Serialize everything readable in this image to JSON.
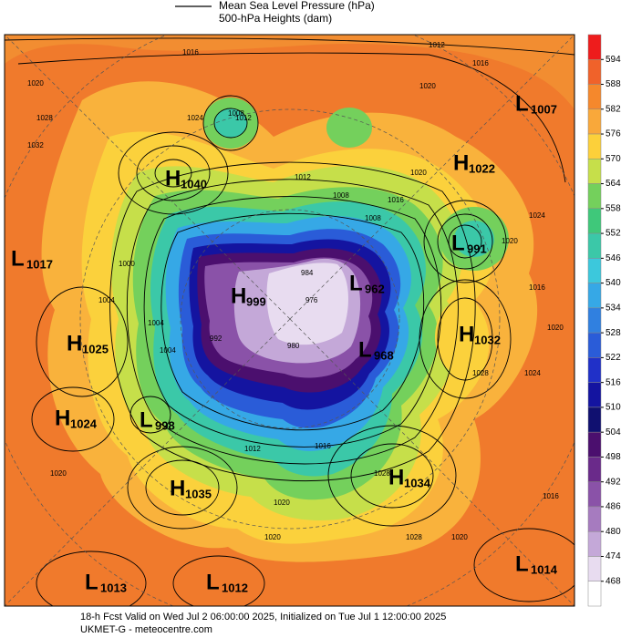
{
  "header": {
    "legend": [
      "Mean Sea Level Pressure (hPa)",
      "500-hPa Heights (dam)"
    ]
  },
  "colorbar": {
    "ticks": [
      594,
      588,
      582,
      576,
      570,
      564,
      558,
      552,
      546,
      540,
      534,
      528,
      522,
      516,
      510,
      504,
      498,
      492,
      486,
      480,
      474,
      468
    ]
  },
  "centers": [
    {
      "letter": "L",
      "value": "1007"
    },
    {
      "letter": "H",
      "value": "1022"
    },
    {
      "letter": "H",
      "value": "1040"
    },
    {
      "letter": "L",
      "value": "1017"
    },
    {
      "letter": "L",
      "value": "991"
    },
    {
      "letter": "L",
      "value": "962"
    },
    {
      "letter": "H",
      "value": "999"
    },
    {
      "letter": "H",
      "value": "1032"
    },
    {
      "letter": "L",
      "value": "968"
    },
    {
      "letter": "H",
      "value": "1025"
    },
    {
      "letter": "H",
      "value": "1024"
    },
    {
      "letter": "L",
      "value": "998"
    },
    {
      "letter": "H",
      "value": "1034"
    },
    {
      "letter": "H",
      "value": "1035"
    },
    {
      "letter": "L",
      "value": "1013"
    },
    {
      "letter": "L",
      "value": "1012"
    },
    {
      "letter": "L",
      "value": "1014"
    }
  ],
  "contour_labels": [
    "1016",
    "1020",
    "1028",
    "1032",
    "1024",
    "1008",
    "1012",
    "1012",
    "1016",
    "1020",
    "1008",
    "1016",
    "1020",
    "1024",
    "1020",
    "1016",
    "1020",
    "1028",
    "1012",
    "1008",
    "1004",
    "1000",
    "992",
    "976",
    "980",
    "984",
    "1004",
    "1004",
    "1012",
    "1016",
    "1020",
    "1020",
    "1028",
    "1028",
    "1024",
    "1020",
    "1016",
    "1020"
  ],
  "footer": {
    "line1": "18-h Fcst Valid on Wed Jul  2 06:00:00 2025, Initialized on Tue Jul  1 12:00:00 2025",
    "line2": "UKMET-G  - meteocentre.com"
  }
}
